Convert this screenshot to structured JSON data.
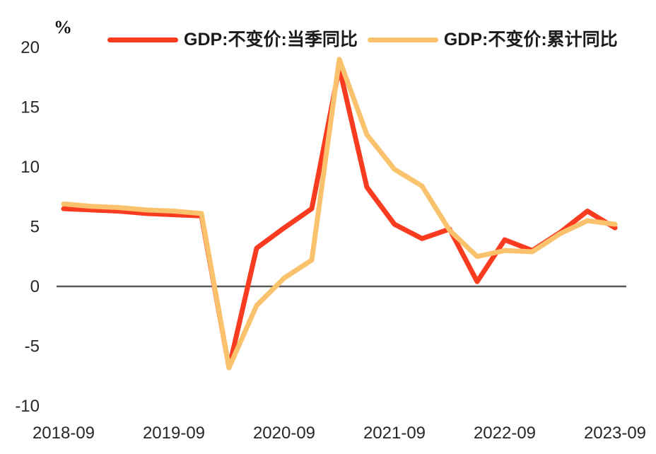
{
  "chart": {
    "unit_label": "%"
  },
  "chart_data": {
    "type": "line",
    "title": "",
    "ylabel": "%",
    "xlabel": "",
    "grid": false,
    "legend_position": "top",
    "ylim": [
      -10,
      20
    ],
    "yticks": [
      20,
      15,
      10,
      5,
      0,
      -5,
      -10
    ],
    "x": [
      "2018-09",
      "2018-12",
      "2019-03",
      "2019-06",
      "2019-09",
      "2019-12",
      "2020-03",
      "2020-06",
      "2020-09",
      "2020-12",
      "2021-03",
      "2021-06",
      "2021-09",
      "2021-12",
      "2022-03",
      "2022-06",
      "2022-09",
      "2022-12",
      "2023-03",
      "2023-06",
      "2023-09"
    ],
    "xticks_shown": [
      "2018-09",
      "2019-09",
      "2020-09",
      "2021-09",
      "2022-09",
      "2023-09"
    ],
    "series": [
      {
        "name": "GDP:不变价:当季同比",
        "color": "#F93C20",
        "values": [
          6.5,
          6.4,
          6.3,
          6.1,
          6.0,
          5.9,
          -6.8,
          3.2,
          4.9,
          6.5,
          18.3,
          8.3,
          5.2,
          4.0,
          4.8,
          0.4,
          3.9,
          3.0,
          4.5,
          6.3,
          4.9
        ]
      },
      {
        "name": "GDP:不变价:累计同比",
        "color": "#FBC26D",
        "values": [
          6.9,
          6.7,
          6.6,
          6.4,
          6.3,
          6.1,
          -6.8,
          -1.6,
          0.7,
          2.2,
          19.0,
          12.7,
          9.8,
          8.4,
          4.7,
          2.5,
          3.0,
          2.9,
          4.4,
          5.5,
          5.2
        ]
      }
    ],
    "zero_line_color": "#595959",
    "axis_text_color": "#262626"
  }
}
